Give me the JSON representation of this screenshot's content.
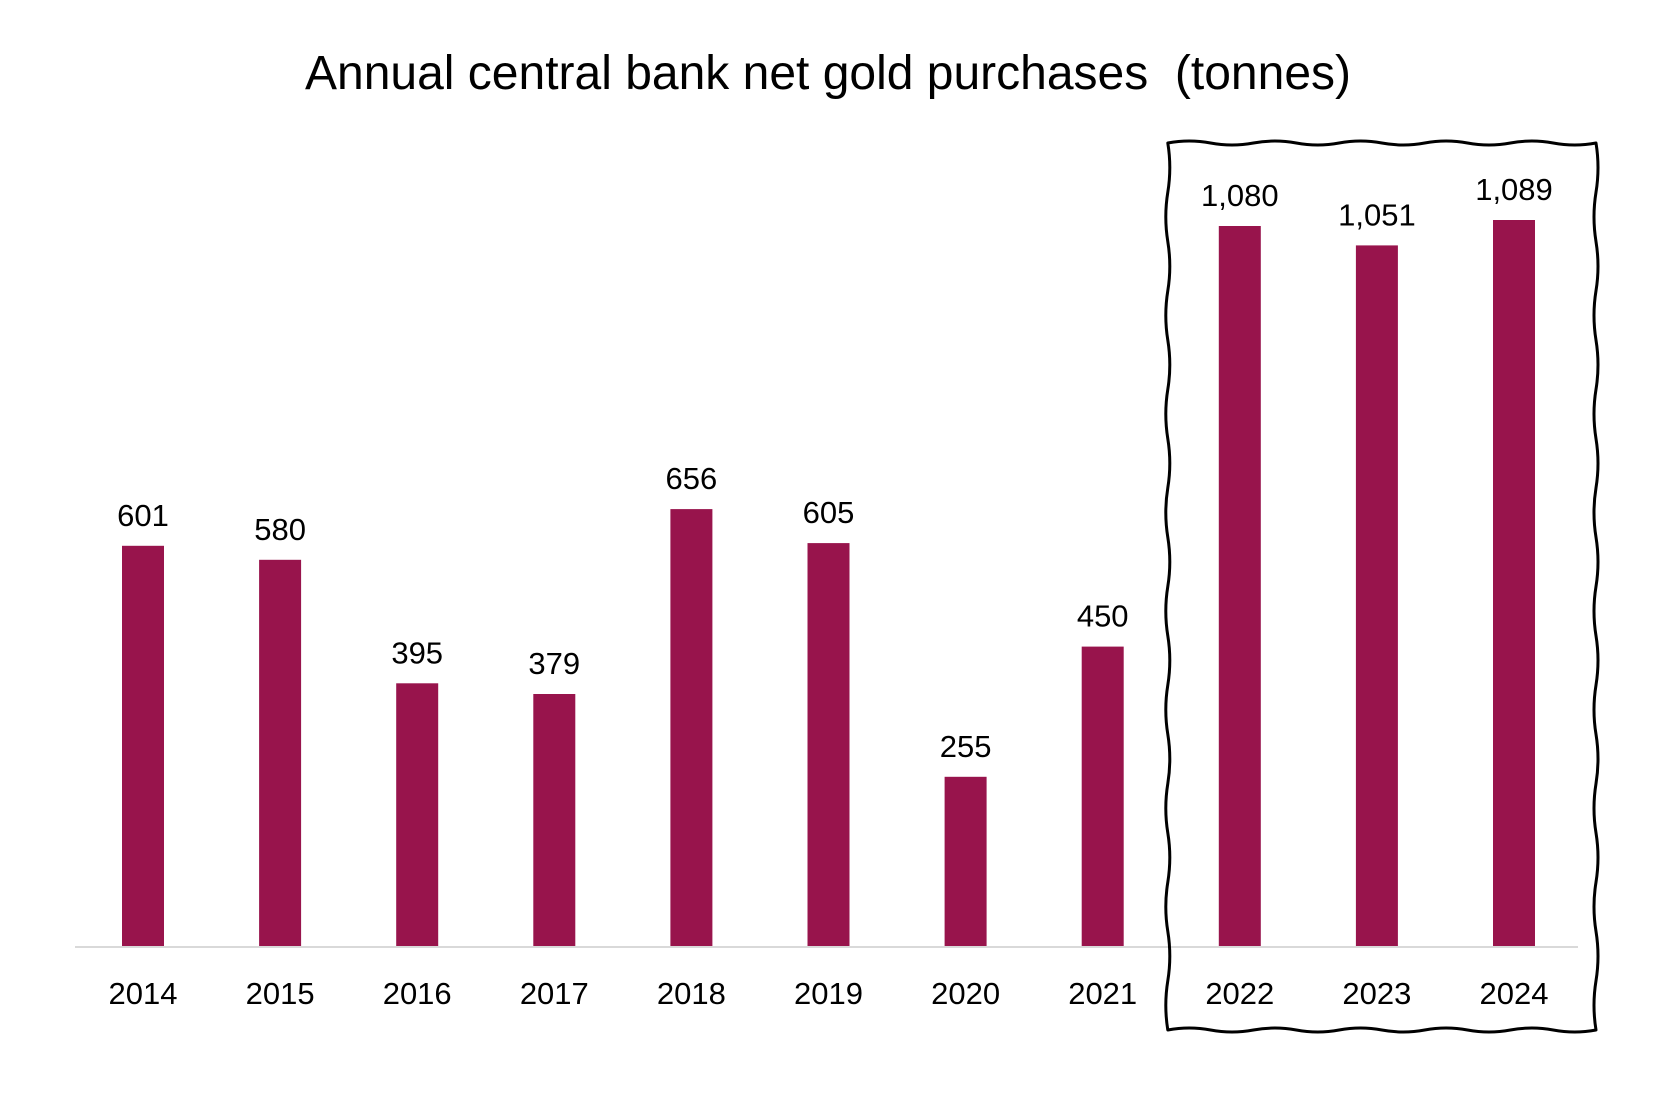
{
  "chart_data": {
    "type": "bar",
    "title": "Annual central bank net gold purchases  (tonnes)",
    "xlabel": "",
    "ylabel": "",
    "categories": [
      "2014",
      "2015",
      "2016",
      "2017",
      "2018",
      "2019",
      "2020",
      "2021",
      "2022",
      "2023",
      "2024"
    ],
    "values": [
      601,
      580,
      395,
      379,
      656,
      605,
      255,
      450,
      1080,
      1051,
      1089
    ],
    "value_labels": [
      "601",
      "580",
      "395",
      "379",
      "656",
      "605",
      "255",
      "450",
      "1,080",
      "1,051",
      "1,089"
    ],
    "ylim": [
      0,
      1089
    ],
    "grid": false,
    "legend": "none",
    "highlighted_categories": [
      "2022",
      "2023",
      "2024"
    ],
    "bar_color": "#98144C",
    "axis_color": "#D9D9D9",
    "highlight_frame_color": "#000000"
  }
}
